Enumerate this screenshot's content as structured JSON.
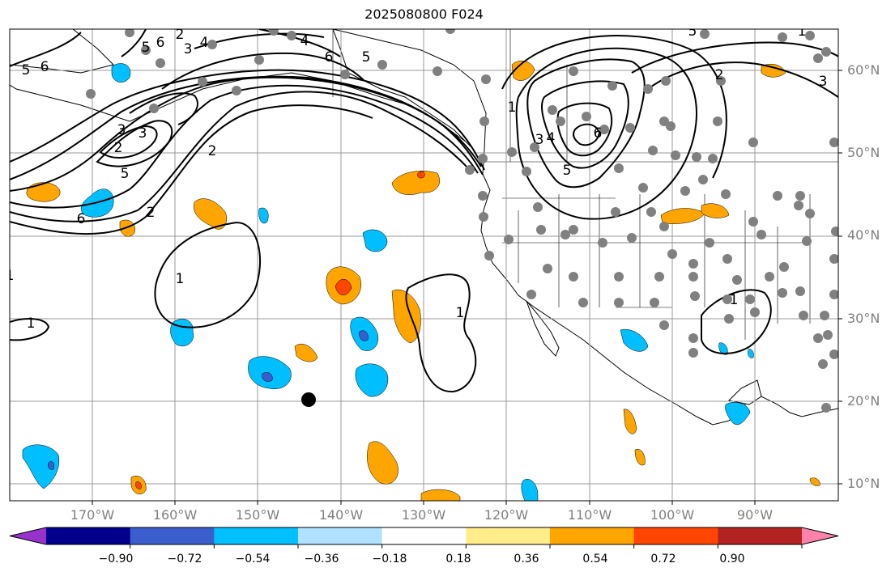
{
  "title": "2025080800 F024",
  "map": {
    "projection": "Plate Carree",
    "lon_range": [
      -180,
      -80
    ],
    "lat_range": [
      8,
      65
    ],
    "latitude_labels": [
      "60°N",
      "50°N",
      "40°N",
      "30°N",
      "20°N",
      "10°N"
    ],
    "longitude_labels": [
      "170°W",
      "160°W",
      "150°W",
      "140°W",
      "130°W",
      "120°W",
      "110°W",
      "100°W",
      "90°W"
    ],
    "gridlines": true,
    "colors": {
      "land_outline": "#000000",
      "grid": "#999999",
      "station": "#808080",
      "contour": "#000000"
    }
  },
  "colorbar": {
    "ticks": [
      "−0.90",
      "−0.72",
      "−0.54",
      "−0.36",
      "−0.18",
      "0.18",
      "0.36",
      "0.54",
      "0.72",
      "0.90"
    ],
    "colors": [
      "#9932cc",
      "#00008b",
      "#3a5fcd",
      "#00bfff",
      "#b0e2ff",
      "#ffffff",
      "#ffec8b",
      "#ffa500",
      "#ff4500",
      "#b22222",
      "#ff82ab"
    ],
    "extend": "both"
  },
  "contour_labels": [
    "5",
    "6",
    "2",
    "3",
    "4",
    "5",
    "6",
    "4",
    "5",
    "6",
    "2",
    "3",
    "3",
    "2",
    "5",
    "6",
    "2",
    "1",
    "1",
    "1",
    "1",
    "1",
    "6",
    "5",
    "3",
    "4",
    "5",
    "2",
    "3",
    "1",
    "1"
  ]
}
